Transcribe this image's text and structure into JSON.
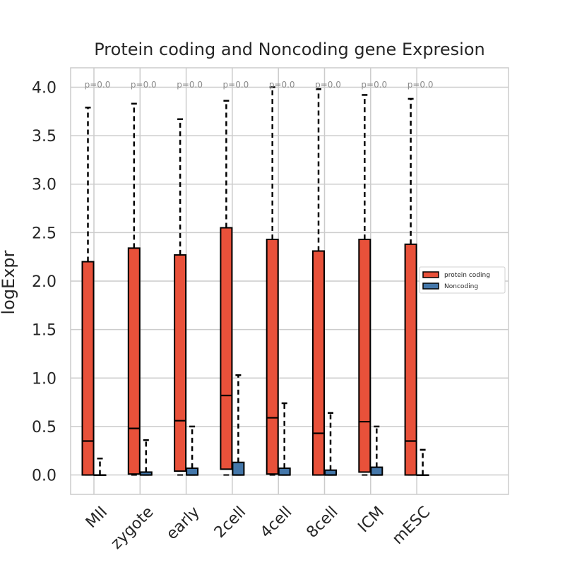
{
  "chart_data": {
    "type": "box",
    "title": "Protein coding and Noncoding gene Expresion",
    "xlabel": "",
    "ylabel": "logExpr",
    "ylim": [
      -0.2,
      4.2
    ],
    "yticks": [
      "0.0",
      "0.5",
      "1.0",
      "1.5",
      "2.0",
      "2.5",
      "3.0",
      "3.5",
      "4.0"
    ],
    "categories": [
      "MII",
      "zygote",
      "early",
      "2cell",
      "4cell",
      "8cell",
      "ICM",
      "mESC"
    ],
    "annotations": [
      "p=0.0",
      "p=0.0",
      "p=0.0",
      "p=0.0",
      "p=0.0",
      "p=0.0",
      "p=0.0",
      "p=0.0"
    ],
    "grid": true,
    "legend_position": "right",
    "series": [
      {
        "name": "protein coding",
        "color": "#e8513a",
        "boxes": [
          {
            "whislo": 0.0,
            "q1": 0.0,
            "med": 0.35,
            "q3": 2.2,
            "whishi": 3.79
          },
          {
            "whislo": 0.0,
            "q1": 0.01,
            "med": 0.48,
            "q3": 2.34,
            "whishi": 3.83
          },
          {
            "whislo": 0.0,
            "q1": 0.04,
            "med": 0.56,
            "q3": 2.27,
            "whishi": 3.67
          },
          {
            "whislo": 0.0,
            "q1": 0.06,
            "med": 0.82,
            "q3": 2.55,
            "whishi": 3.86
          },
          {
            "whislo": 0.0,
            "q1": 0.01,
            "med": 0.59,
            "q3": 2.43,
            "whishi": 4.0
          },
          {
            "whislo": 0.0,
            "q1": 0.0,
            "med": 0.43,
            "q3": 2.31,
            "whishi": 3.98
          },
          {
            "whislo": 0.0,
            "q1": 0.03,
            "med": 0.55,
            "q3": 2.43,
            "whishi": 3.92
          },
          {
            "whislo": 0.0,
            "q1": 0.0,
            "med": 0.35,
            "q3": 2.38,
            "whishi": 3.88
          }
        ]
      },
      {
        "name": "Noncoding",
        "color": "#4477aa",
        "boxes": [
          {
            "whislo": 0.0,
            "q1": 0.0,
            "med": 0.0,
            "q3": 0.0,
            "whishi": 0.17
          },
          {
            "whislo": 0.0,
            "q1": 0.0,
            "med": 0.0,
            "q3": 0.03,
            "whishi": 0.36
          },
          {
            "whislo": 0.0,
            "q1": 0.0,
            "med": 0.0,
            "q3": 0.07,
            "whishi": 0.5
          },
          {
            "whislo": 0.0,
            "q1": 0.0,
            "med": 0.0,
            "q3": 0.13,
            "whishi": 1.03
          },
          {
            "whislo": 0.0,
            "q1": 0.0,
            "med": 0.0,
            "q3": 0.07,
            "whishi": 0.74
          },
          {
            "whislo": 0.0,
            "q1": 0.0,
            "med": 0.0,
            "q3": 0.05,
            "whishi": 0.64
          },
          {
            "whislo": 0.0,
            "q1": 0.0,
            "med": 0.0,
            "q3": 0.08,
            "whishi": 0.5
          },
          {
            "whislo": 0.0,
            "q1": 0.0,
            "med": 0.0,
            "q3": 0.0,
            "whishi": 0.26
          }
        ]
      }
    ]
  }
}
